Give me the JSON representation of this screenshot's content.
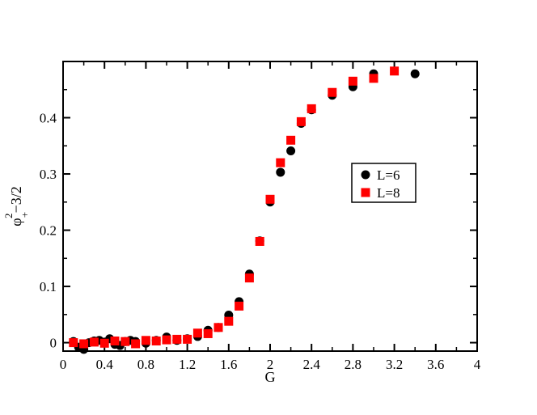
{
  "chart_data": {
    "type": "scatter",
    "xlabel": "G",
    "ylabel_base": "φ",
    "ylabel_sup": "2",
    "ylabel_sub": "+",
    "ylabel_tail": "−3/2",
    "xlim": [
      0,
      4
    ],
    "ylim": [
      -0.015,
      0.5
    ],
    "x_ticks": [
      0,
      0.4,
      0.8,
      1.2,
      1.6,
      2,
      2.4,
      2.8,
      3.2,
      3.6,
      4
    ],
    "x_tick_labels": [
      "0",
      "0.4",
      "0.8",
      "1.2",
      "1.6",
      "2",
      "2.4",
      "2.8",
      "3.2",
      "3.6",
      "4"
    ],
    "y_ticks": [
      0,
      0.1,
      0.2,
      0.3,
      0.4
    ],
    "y_tick_labels": [
      "0",
      "0.1",
      "0.2",
      "0.3",
      "0.4"
    ],
    "grid": false,
    "legend_position": "right-middle",
    "series": [
      {
        "name": "L=6",
        "marker": "circle",
        "color": "#000000",
        "points": [
          [
            0.1,
            0.002
          ],
          [
            0.15,
            -0.008
          ],
          [
            0.2,
            -0.012
          ],
          [
            0.25,
            0.0
          ],
          [
            0.3,
            0.003
          ],
          [
            0.35,
            0.004
          ],
          [
            0.4,
            0.001
          ],
          [
            0.45,
            0.007
          ],
          [
            0.5,
            -0.003
          ],
          [
            0.55,
            -0.005
          ],
          [
            0.6,
            0.002
          ],
          [
            0.65,
            0.004
          ],
          [
            0.7,
            0.002
          ],
          [
            0.8,
            -0.001
          ],
          [
            0.9,
            0.004
          ],
          [
            1.0,
            0.01
          ],
          [
            1.1,
            0.004
          ],
          [
            1.2,
            0.007
          ],
          [
            1.3,
            0.011
          ],
          [
            1.4,
            0.022
          ],
          [
            1.5,
            0.027
          ],
          [
            1.6,
            0.049
          ],
          [
            1.7,
            0.073
          ],
          [
            1.8,
            0.122
          ],
          [
            1.9,
            0.181
          ],
          [
            2.0,
            0.25
          ],
          [
            2.1,
            0.303
          ],
          [
            2.2,
            0.341
          ],
          [
            2.3,
            0.39
          ],
          [
            2.4,
            0.414
          ],
          [
            2.6,
            0.44
          ],
          [
            2.8,
            0.455
          ],
          [
            3.0,
            0.478
          ],
          [
            3.4,
            0.478
          ]
        ]
      },
      {
        "name": "L=8",
        "marker": "square",
        "color": "#ff0000",
        "points": [
          [
            0.1,
            0.0
          ],
          [
            0.2,
            -0.002
          ],
          [
            0.3,
            0.001
          ],
          [
            0.4,
            -0.001
          ],
          [
            0.5,
            0.003
          ],
          [
            0.6,
            0.002
          ],
          [
            0.7,
            -0.002
          ],
          [
            0.8,
            0.004
          ],
          [
            0.9,
            0.003
          ],
          [
            1.0,
            0.005
          ],
          [
            1.1,
            0.006
          ],
          [
            1.2,
            0.006
          ],
          [
            1.3,
            0.017
          ],
          [
            1.4,
            0.016
          ],
          [
            1.5,
            0.027
          ],
          [
            1.6,
            0.038
          ],
          [
            1.7,
            0.065
          ],
          [
            1.8,
            0.115
          ],
          [
            1.9,
            0.18
          ],
          [
            2.0,
            0.255
          ],
          [
            2.1,
            0.32
          ],
          [
            2.2,
            0.36
          ],
          [
            2.3,
            0.393
          ],
          [
            2.4,
            0.416
          ],
          [
            2.6,
            0.445
          ],
          [
            2.8,
            0.465
          ],
          [
            3.0,
            0.47
          ],
          [
            3.2,
            0.483
          ]
        ]
      }
    ]
  }
}
